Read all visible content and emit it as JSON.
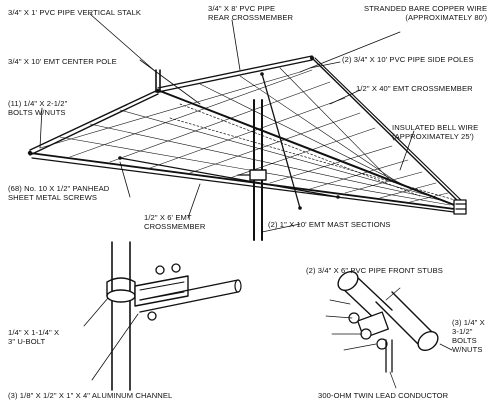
{
  "colors": {
    "ink": "#111111",
    "paper": "#ffffff"
  },
  "labels": {
    "pvc_vertical_stalk": "3/4\" X 1' PVC PIPE VERTICAL STALK",
    "pvc_rear_crossmember": "3/4\" X 8' PVC PIPE\nREAR CROSSMEMBER",
    "stranded_wire": "STRANDED BARE COPPER WIRE\n(APPROXIMATELY 80')",
    "emt_center_pole": "3/4\" X 10' EMT CENTER POLE",
    "pvc_side_poles": "(2) 3/4\" X 10' PVC PIPE SIDE POLES",
    "bolts_wnuts": "(11) 1/4\" X 2-1/2\"\nBOLTS W/NUTS",
    "emt_crossmember_40": "1/2\" X 40\" EMT CROSSMEMBER",
    "bell_wire": "INSULATED BELL WIRE\n(APPROXIMATELY 25')",
    "sheet_metal_screws": "(68) No. 10 X 1/2\" PANHEAD\nSHEET METAL SCREWS",
    "emt_crossmember_6": "1/2\" X 6' EMT\nCROSSMEMBER",
    "mast_sections": "(2) 1\" X 10' EMT MAST SECTIONS",
    "front_stubs": "(2) 3/4\" X 6\" PVC PIPE FRONT STUBS",
    "u_bolt": "1/4\" X 1-1/4\" X\n3\" U-BOLT",
    "bolts_3_5": "(3) 1/4\" X\n3-1/2\"\nBOLTS\nW/NUTS",
    "aluminum_channel": "(3) 1/8\" X 1/2\" X 1\" X 4\" ALUMINUM CHANNEL",
    "twin_lead": "300-OHM TWIN LEAD CONDUCTOR"
  }
}
